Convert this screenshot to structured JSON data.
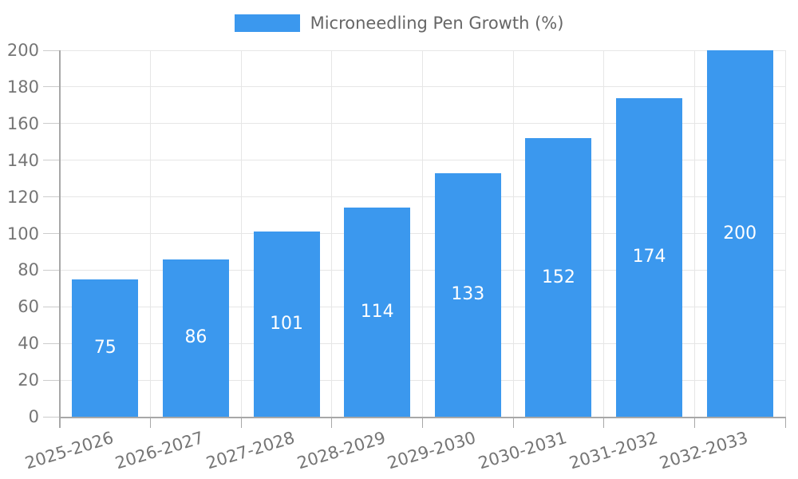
{
  "legend": {
    "label": "Microneedling Pen Growth (%)"
  },
  "colors": {
    "bar": "#3b98ee",
    "bar_label": "#ffffff",
    "grid": "#e6e6e6",
    "axis": "#a8a8a8",
    "tick": "#cccccc",
    "tick_label": "#757575",
    "legend_text": "#666666"
  },
  "chart_data": {
    "type": "bar",
    "title": "Microneedling Pen Growth (%)",
    "categories": [
      "2025-2026",
      "2026-2027",
      "2027-2028",
      "2028-2029",
      "2029-2030",
      "2030-2031",
      "2031-2032",
      "2032-2033"
    ],
    "values": [
      75,
      86,
      101,
      114,
      133,
      152,
      174,
      200
    ],
    "xlabel": "",
    "ylabel": "",
    "ylim": [
      0,
      200
    ],
    "yticks": [
      0,
      20,
      40,
      60,
      80,
      100,
      120,
      140,
      160,
      180,
      200
    ],
    "grid": true,
    "bar_value_labels": "inside-centered",
    "legend_position": "top-center",
    "x_label_rotation_deg": -17
  }
}
